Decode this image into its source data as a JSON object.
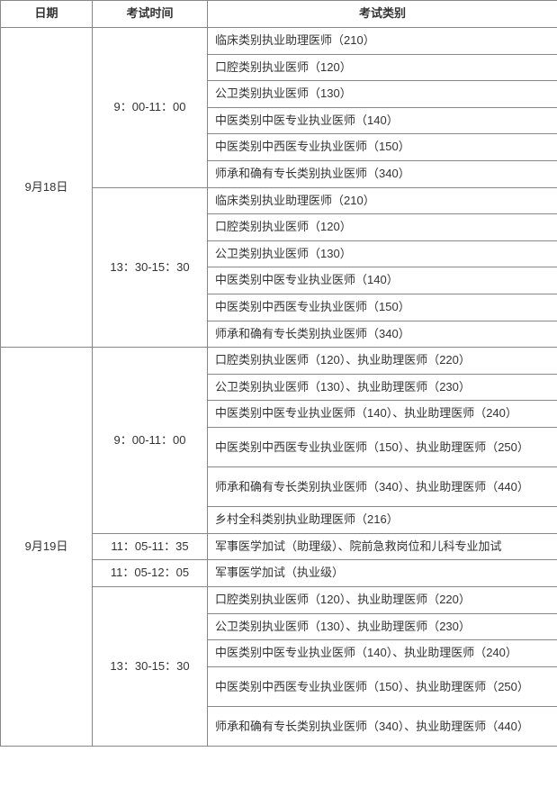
{
  "headers": {
    "date": "日期",
    "time": "考试时间",
    "category": "考试类别"
  },
  "dates": {
    "d1": "9月18日",
    "d2": "9月19日"
  },
  "times": {
    "t_morning": "9：00-11：00",
    "t_afternoon": "13：30-15：30",
    "t_1105_1135": "11：05-11：35",
    "t_1105_1205": "11：05-12：05"
  },
  "cats18m": {
    "c1": "临床类别执业助理医师（210）",
    "c2": "口腔类别执业医师（120）",
    "c3": "公卫类别执业医师（130）",
    "c4": "中医类别中医专业执业医师（140）",
    "c5": "中医类别中西医专业执业医师（150）",
    "c6": "师承和确有专长类别执业医师（340）"
  },
  "cats18a": {
    "c1": "临床类别执业助理医师（210）",
    "c2": "口腔类别执业医师（120）",
    "c3": "公卫类别执业医师（130）",
    "c4": "中医类别中医专业执业医师（140）",
    "c5": "中医类别中西医专业执业医师（150）",
    "c6": "师承和确有专长类别执业医师（340）"
  },
  "cats19m": {
    "c1": "口腔类别执业医师（120）、执业助理医师（220）",
    "c2": "公卫类别执业医师（130）、执业助理医师（230）",
    "c3": "中医类别中医专业执业医师（140）、执业助理医师（240）",
    "c4": "中医类别中西医专业执业医师（150）、执业助理医师（250）",
    "c5": "师承和确有专长类别执业医师（340）、执业助理医师（440）",
    "c6": "乡村全科类别执业助理医师（216）"
  },
  "cats19x": {
    "c1": "军事医学加试（助理级）、院前急救岗位和儿科专业加试",
    "c2": "军事医学加试（执业级）"
  },
  "cats19a": {
    "c1": "口腔类别执业医师（120）、执业助理医师（220）",
    "c2": "公卫类别执业医师（130）、执业助理医师（230）",
    "c3": "中医类别中医专业执业医师（140）、执业助理医师（240）",
    "c4": "中医类别中西医专业执业医师（150）、执业助理医师（250）",
    "c5": "师承和确有专长类别执业医师（340）、执业助理医师（440）"
  }
}
